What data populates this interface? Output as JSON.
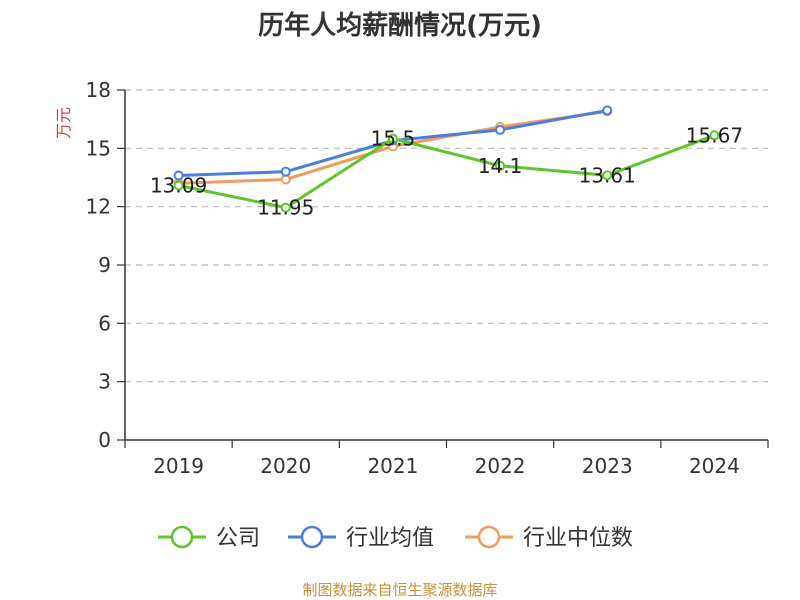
{
  "chart_data": {
    "type": "line",
    "title": "历年人均薪酬情况(万元)",
    "ylabel": "万元",
    "xlabel": "",
    "categories": [
      "2019",
      "2020",
      "2021",
      "2022",
      "2023",
      "2024"
    ],
    "ylim": [
      0,
      18
    ],
    "yticks": [
      0,
      3,
      6,
      9,
      12,
      15,
      18
    ],
    "grid": "horizontal-dashed",
    "legend_position": "bottom",
    "series": [
      {
        "name": "公司",
        "color": "#5cc72a",
        "values": [
          13.09,
          11.95,
          15.5,
          14.1,
          13.61,
          15.67
        ],
        "data_labels": [
          "13.09",
          "11.95",
          "15.5",
          "14.1",
          "13.61",
          "15.67"
        ]
      },
      {
        "name": "行业均值",
        "color": "#4a7fde",
        "values": [
          13.6,
          13.8,
          15.4,
          15.95,
          16.95,
          null
        ],
        "data_labels": []
      },
      {
        "name": "行业中位数",
        "color": "#f39a5d",
        "values": [
          13.2,
          13.4,
          15.1,
          16.1,
          16.9,
          null
        ],
        "data_labels": []
      }
    ]
  },
  "source_text": "制图数据来自恒生聚源数据库"
}
